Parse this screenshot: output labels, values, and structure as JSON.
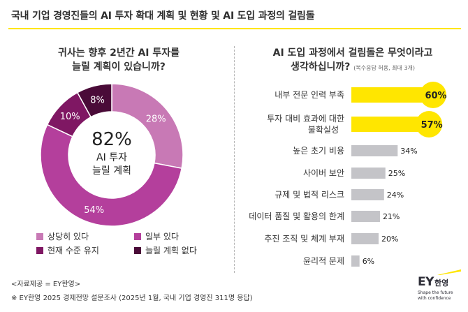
{
  "page": {
    "title": "국내 기업 경영진들의 AI 투자 확대 계획 및  현황 및 AI 도입 과정의 걸림돌"
  },
  "left_question": {
    "line1": "귀사는 향후 2년간 AI 투자를",
    "line2": "늘릴 계획이 있습니까?"
  },
  "right_question": {
    "line1": "AI 도입 과정에서 걸림돌은 무엇이라고",
    "line2": "생각하십니까?",
    "note": "(복수응답 허용, 최대 3개)"
  },
  "chart_data": [
    {
      "type": "pie",
      "title": "귀사는 향후 2년간 AI 투자를 늘릴 계획이 있습니까?",
      "categories": [
        "상당히 있다",
        "일부 있다",
        "현재 수준 유지",
        "늘릴 계획 없다"
      ],
      "values": [
        28,
        54,
        10,
        8
      ],
      "value_labels": [
        "28%",
        "54%",
        "10%",
        "8%"
      ],
      "colors": [
        "#c879b5",
        "#b43f9c",
        "#7f1763",
        "#4a0b38"
      ],
      "center_label": {
        "value": "82%",
        "line1": "AI 투자",
        "line2": "늘릴 계획"
      },
      "legend_placement": "bottom"
    },
    {
      "type": "bar",
      "orientation": "horizontal",
      "title": "AI 도입 과정에서 걸림돌은 무엇이라고 생각하십니까?",
      "categories": [
        "내부 전문 인력 부족",
        "투자 대비 효과에 대한 불확실성",
        "높은 초기 비용",
        "사이버 보안",
        "규제 및 법적 리스크",
        "데이터 품질 및 활용의 한계",
        "추진 조직 및 체계 부재",
        "윤리적 문제"
      ],
      "category_lines": [
        [
          "내부 전문 인력 부족"
        ],
        [
          "투자 대비 효과에 대한",
          "불확실성"
        ],
        [
          "높은 초기 비용"
        ],
        [
          "사이버 보안"
        ],
        [
          "규제 및 법적 리스크"
        ],
        [
          "데이터 품질 및 활용의 한계"
        ],
        [
          "추진 조직 및 체계 부재"
        ],
        [
          "윤리적 문제"
        ]
      ],
      "values": [
        60,
        57,
        34,
        25,
        24,
        21,
        20,
        6
      ],
      "value_labels": [
        "60%",
        "57%",
        "34%",
        "25%",
        "24%",
        "21%",
        "20%",
        "6%"
      ],
      "highlight_count": 2,
      "colors": {
        "highlight": "#ffe600",
        "normal": "#c4c4c8"
      },
      "xlim": [
        0,
        60
      ]
    }
  ],
  "source": {
    "line1": "<자료제공 = EY한영>",
    "line2": "※ EY한영 2025 경제전망 설문조사 (2025년 1월, 국내 기업 경영진 311명 응답)"
  },
  "logo": {
    "mark": "EY",
    "name": "한영",
    "tagline1": "Shape the future",
    "tagline2": "with confidence"
  }
}
